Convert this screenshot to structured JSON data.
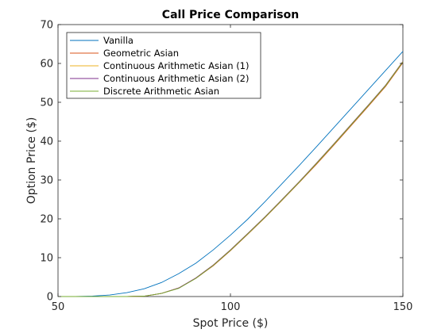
{
  "chart_data": {
    "type": "line",
    "title": "Call Price Comparison",
    "xlabel": "Spot Price ($)",
    "ylabel": "Option Price ($)",
    "xlim": [
      50,
      150
    ],
    "ylim": [
      0,
      70
    ],
    "xticks": [
      50,
      100,
      150
    ],
    "yticks": [
      0,
      10,
      20,
      30,
      40,
      50,
      60,
      70
    ],
    "grid": false,
    "legend_position": "top-left",
    "x": [
      50,
      55,
      60,
      65,
      70,
      75,
      80,
      85,
      90,
      95,
      100,
      105,
      110,
      115,
      120,
      125,
      130,
      135,
      140,
      145,
      150
    ],
    "series": [
      {
        "name": "Vanilla",
        "color": "#0072BD",
        "values": [
          0,
          0,
          0.1,
          0.4,
          1.0,
          2.0,
          3.6,
          5.9,
          8.6,
          12.0,
          15.8,
          19.9,
          24.4,
          29.1,
          33.8,
          38.6,
          43.5,
          48.4,
          53.3,
          58.2,
          63.1
        ]
      },
      {
        "name": "Geometric Asian",
        "color": "#D95319",
        "values": [
          0,
          0,
          0,
          0,
          0,
          0.1,
          0.8,
          2.2,
          4.7,
          7.9,
          11.8,
          16.0,
          20.3,
          24.8,
          29.4,
          34.1,
          39.0,
          44.0,
          49.0,
          54.1,
          60.2
        ]
      },
      {
        "name": "Continuous Arithmetic Asian (1)",
        "color": "#EDB120",
        "values": [
          0,
          0,
          0,
          0,
          0,
          0.1,
          0.8,
          2.2,
          4.8,
          8.1,
          12.0,
          16.2,
          20.5,
          25.0,
          29.6,
          34.4,
          39.3,
          44.3,
          49.3,
          54.4,
          60.5
        ]
      },
      {
        "name": "Continuous Arithmetic Asian (2)",
        "color": "#7E2F8E",
        "values": [
          0,
          0,
          0,
          0,
          0,
          0.1,
          0.8,
          2.2,
          4.8,
          8.1,
          12.0,
          16.2,
          20.5,
          25.0,
          29.6,
          34.4,
          39.3,
          44.3,
          49.3,
          54.4,
          60.5
        ]
      },
      {
        "name": "Discrete Arithmetic Asian",
        "color": "#77AC30",
        "values": [
          0,
          0,
          0,
          0,
          0,
          0.1,
          0.8,
          2.1,
          4.7,
          8.0,
          11.9,
          16.1,
          20.4,
          24.9,
          29.5,
          34.3,
          39.2,
          44.2,
          49.2,
          54.3,
          60.4
        ]
      }
    ]
  }
}
